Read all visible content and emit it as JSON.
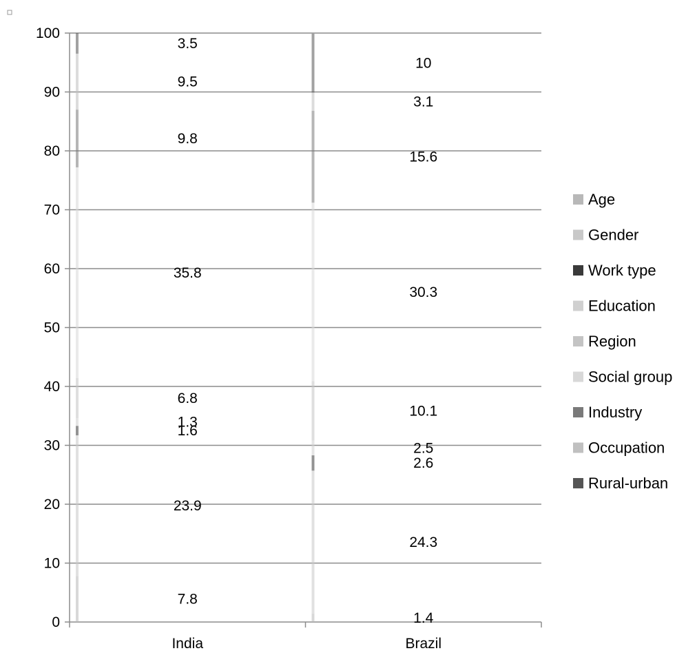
{
  "chart_data": {
    "type": "bar",
    "stacked": true,
    "title": "",
    "xlabel": "",
    "ylabel": "",
    "ylim": [
      0,
      100
    ],
    "yticks": [
      0,
      10,
      20,
      30,
      40,
      50,
      60,
      70,
      80,
      90,
      100
    ],
    "grid": true,
    "legend_position": "right",
    "categories": [
      "India",
      "Brazil"
    ],
    "series": [
      {
        "name": "Age",
        "values": [
          7.8,
          1.4
        ],
        "color": "#b8b8b8"
      },
      {
        "name": "Gender",
        "values": [
          23.9,
          24.3
        ],
        "color": "#c8c8c8"
      },
      {
        "name": "Work type",
        "values": [
          1.6,
          2.6
        ],
        "color": "#3a3a3a"
      },
      {
        "name": "Education",
        "values": [
          1.3,
          2.5
        ],
        "color": "#d0d0d0"
      },
      {
        "name": "Region",
        "values": [
          6.8,
          10.1
        ],
        "color": "#c4c4c4"
      },
      {
        "name": "Social group",
        "values": [
          35.8,
          30.3
        ],
        "color": "#d8d8d8"
      },
      {
        "name": "Industry",
        "values": [
          9.8,
          15.6
        ],
        "color": "#7a7a7a"
      },
      {
        "name": "Occupation",
        "values": [
          9.5,
          3.1
        ],
        "color": "#c0c0c0"
      },
      {
        "name": "Rural-urban",
        "values": [
          3.5,
          10
        ],
        "color": "#555555"
      }
    ]
  }
}
